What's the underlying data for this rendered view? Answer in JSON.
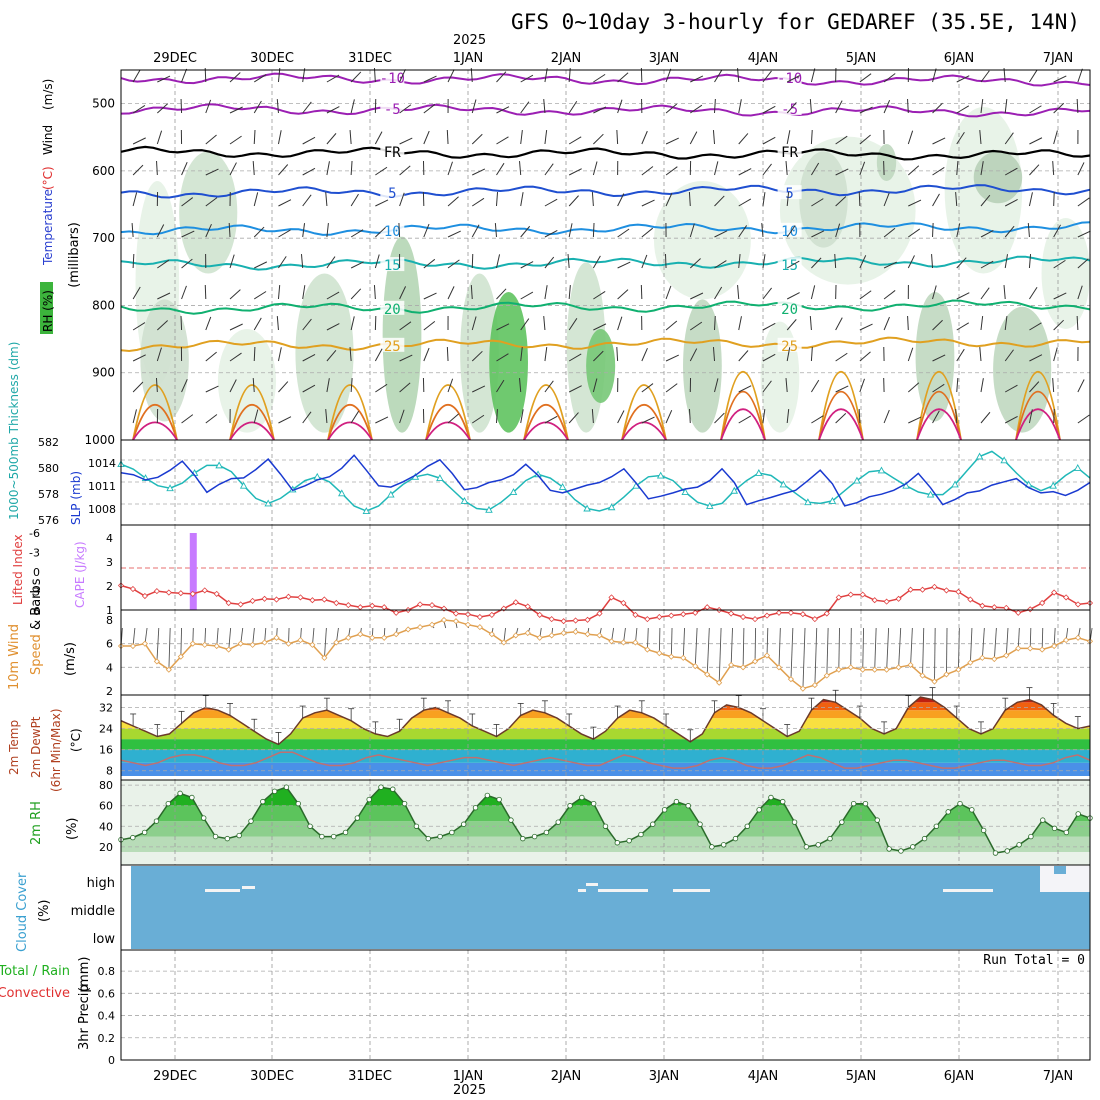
{
  "chart_data": {
    "type": "meteogram",
    "title": "GFS 0~10day 3-hourly for GEDAREF (35.5E, 14N)",
    "year_label": "2025",
    "dates": [
      "29DEC",
      "30DEC",
      "31DEC",
      "1JAN",
      "2JAN",
      "3JAN",
      "4JAN",
      "5JAN",
      "6JAN",
      "7JAN"
    ],
    "run_total": "Run Total = 0",
    "panels": [
      {
        "id": "upper_air",
        "type": "contour",
        "ylabel_parts": [
          {
            "text": "RH (%)",
            "color": "#2aa02a"
          },
          {
            "text": "Temperature",
            "color": "#2a3fd0"
          },
          {
            "text": "(°C)",
            "color": "#e03030"
          },
          {
            "text": "Wind",
            "color": "#000000"
          },
          {
            "text": "(m/s)",
            "color": "#000000"
          }
        ],
        "units": "(millibars)",
        "ylim": [
          1000,
          450
        ],
        "yticks": [
          "500",
          "600",
          "700",
          "800",
          "900",
          "1000"
        ],
        "isotherms": [
          {
            "label": "-10",
            "level_mb": 462,
            "color": "#9b1fb3"
          },
          {
            "label": "-5",
            "level_mb": 508,
            "color": "#9b1fb3"
          },
          {
            "label": "FR",
            "level_mb": 572,
            "color": "#000000"
          },
          {
            "label": "5",
            "level_mb": 633,
            "color": "#1f4fd0"
          },
          {
            "label": "10",
            "level_mb": 689,
            "color": "#1e8fe0"
          },
          {
            "label": "15",
            "level_mb": 740,
            "color": "#18b0b0"
          },
          {
            "label": "20",
            "level_mb": 805,
            "color": "#10b070"
          },
          {
            "label": "25",
            "level_mb": 860,
            "color": "#e0a020"
          }
        ]
      },
      {
        "id": "slp_thickness",
        "type": "line",
        "ylabel_left": "1000~500mb Thickness (dm)",
        "ylabel_right": "SLP (mb)",
        "yticks_left": [
          "582",
          "580",
          "578",
          "576"
        ],
        "yticks_right": [
          "1014",
          "1011",
          "1008"
        ],
        "series": [
          {
            "name": "SLP (mb)",
            "color": "#1a3ad0",
            "values": [
              1012.5,
              1012.2,
              1011.4,
              1011.8,
              1012.9,
              1014.3,
              1012.1,
              1009.5,
              1010.7,
              1011.6,
              1011.7,
              1013.0,
              1014.6,
              1012.3,
              1009.8,
              1010.5,
              1011.4,
              1011.9,
              1013.2,
              1015.2,
              1012.9,
              1010.5,
              1010.3,
              1011.1,
              1012.1,
              1013.5,
              1014.5,
              1012.4,
              1009.9,
              1010.2,
              1011.0,
              1011.4,
              1012.2,
              1013.8,
              1012.1,
              1009.8,
              1009.4,
              1010.0,
              1010.6,
              1011.0,
              1011.9,
              1013.1,
              1010.9,
              1008.5,
              1008.9,
              1009.4,
              1010.0,
              1010.3,
              1011.3,
              1013.1,
              1011.0,
              1007.6,
              1008.2,
              1008.7,
              1009.3,
              1009.8,
              1011.3,
              1012.9,
              1010.8,
              1007.4,
              1007.9,
              1008.8,
              1009.2,
              1009.8,
              1010.8,
              1012.4,
              1010.2,
              1007.6,
              1008.4,
              1009.4,
              1009.7,
              1010.6,
              1011.1,
              1011.6,
              1010.2,
              1009.4,
              1009.6,
              1009.0,
              1009.8,
              1011.0
            ]
          },
          {
            "name": "1000~500mb Thickness (dm)",
            "color": "#20b8b8",
            "values": [
              580.3,
              579.9,
              579.2,
              578.6,
              578.4,
              578.8,
              579.6,
              580.2,
              580.2,
              579.7,
              578.6,
              577.6,
              577.2,
              577.6,
              578.3,
              579.0,
              579.3,
              578.9,
              578.0,
              577.0,
              576.6,
              577.0,
              577.9,
              578.7,
              579.3,
              579.5,
              579.2,
              578.3,
              577.4,
              576.8,
              576.7,
              577.3,
              578.1,
              579.0,
              579.5,
              579.2,
              578.5,
              577.5,
              576.8,
              576.6,
              576.9,
              577.7,
              578.6,
              579.3,
              579.4,
              579.0,
              578.1,
              577.3,
              577.0,
              577.2,
              578.2,
              579.0,
              579.6,
              579.4,
              578.7,
              578.0,
              577.3,
              577.2,
              577.4,
              578.2,
              579.0,
              579.7,
              579.8,
              579.2,
              578.6,
              578.1,
              577.9,
              577.9,
              578.7,
              579.8,
              580.9,
              581.3,
              580.6,
              579.6,
              578.7,
              578.2,
              578.6,
              579.4,
              580.0,
              579.2
            ]
          }
        ]
      },
      {
        "id": "li_cape",
        "type": "line+bar",
        "ylabel_left": "Lifted Index",
        "ylabel_right": "CAPE (J/kg)",
        "yticks_left": [
          "-6",
          "-3",
          "0",
          "3",
          "6"
        ],
        "yticks_right": [
          "4",
          "3",
          "2",
          "1"
        ],
        "series": [
          {
            "name": "Lifted Index",
            "color": "#e04040",
            "values": [
              2.5,
              3.0,
              4.0,
              3.3,
              3.5,
              3.6,
              3.7,
              3.2,
              3.7,
              5.0,
              5.2,
              4.7,
              4.4,
              4.5,
              4.1,
              4.2,
              4.6,
              4.5,
              5.0,
              5.3,
              5.6,
              5.4,
              5.6,
              6.4,
              6.0,
              5.2,
              5.3,
              5.8,
              6.5,
              6.6,
              7.0,
              6.7,
              5.8,
              4.9,
              5.5,
              6.7,
              7.3,
              7.6,
              7.5,
              7.4,
              6.5,
              4.2,
              5.0,
              6.7,
              7.3,
              7.0,
              6.8,
              6.6,
              6.4,
              5.6,
              6.0,
              6.5,
              7.0,
              7.3,
              6.8,
              6.4,
              6.4,
              6.6,
              7.3,
              6.5,
              4.2,
              3.8,
              3.8,
              4.6,
              4.8,
              4.4,
              3.1,
              3.1,
              2.7,
              3.2,
              3.4,
              4.5,
              5.4,
              5.6,
              5.7,
              6.4,
              5.9,
              5.0,
              3.5,
              4.2,
              5.2,
              5.0
            ]
          },
          {
            "name": "CAPE (J/kg)",
            "color": "#c77bff",
            "bars": [
              {
                "index": 6,
                "value": 4.0
              }
            ]
          }
        ]
      },
      {
        "id": "wind10m",
        "type": "line",
        "ylabel": "10m Wind Speed & Barbs",
        "units": "(m/s)",
        "yticks": [
          "8",
          "6",
          "4",
          "2"
        ],
        "series": [
          {
            "name": "10m Wind Speed (m/s)",
            "color": "#e0a050",
            "values": [
              5.8,
              5.8,
              6.0,
              4.5,
              3.8,
              4.9,
              6.0,
              5.9,
              5.8,
              5.5,
              6.0,
              5.9,
              6.1,
              6.5,
              6.0,
              6.3,
              5.9,
              4.8,
              6.1,
              6.5,
              6.8,
              6.5,
              6.5,
              6.8,
              7.2,
              7.4,
              7.6,
              8.0,
              7.9,
              7.6,
              7.4,
              6.8,
              6.1,
              6.7,
              6.9,
              6.5,
              6.7,
              6.9,
              7.0,
              6.8,
              6.7,
              6.2,
              6.1,
              6.1,
              5.5,
              5.2,
              4.9,
              4.8,
              4.1,
              3.4,
              2.7,
              4.2,
              4.0,
              4.5,
              5.0,
              4.0,
              3.0,
              2.2,
              2.5,
              3.3,
              3.8,
              4.0,
              3.8,
              3.8,
              3.8,
              4.0,
              4.2,
              3.3,
              2.8,
              3.4,
              3.8,
              4.4,
              4.8,
              4.7,
              5.0,
              5.6,
              5.6,
              5.5,
              5.8,
              6.3,
              6.5,
              6.2
            ]
          }
        ]
      },
      {
        "id": "temp2m",
        "type": "area+line",
        "ylabel": "2m Temp 2m DewPt (6hr Min/Max)",
        "units": "(°C)",
        "yticks": [
          "32",
          "24",
          "16",
          "8"
        ],
        "series": [
          {
            "name": "2m Temp (°C)",
            "values": [
              27,
              25,
              23,
              21,
              22,
              26,
              30,
              32,
              31,
              29,
              26,
              23,
              20,
              18,
              22,
              28,
              30,
              31,
              29,
              27,
              24,
              22,
              21,
              23,
              28,
              31,
              32,
              30,
              28,
              25,
              23,
              21,
              24,
              29,
              31,
              30,
              28,
              25,
              22,
              20,
              23,
              28,
              31,
              30,
              28,
              25,
              22,
              19,
              22,
              30,
              33,
              32,
              30,
              27,
              24,
              21,
              23,
              31,
              35,
              34,
              31,
              28,
              24,
              22,
              24,
              32,
              36,
              35,
              32,
              28,
              24,
              22,
              24,
              31,
              34,
              35,
              33,
              29,
              26,
              24,
              25
            ]
          },
          {
            "name": "2m DewPt (°C)",
            "values": [
              12,
              11,
              10,
              11,
              13,
              14,
              14,
              13,
              11,
              10,
              10,
              11,
              13,
              15,
              15,
              13,
              11,
              10,
              10,
              11,
              13,
              14,
              13,
              12,
              11,
              10,
              11,
              12,
              13,
              13,
              12,
              11,
              10,
              11,
              12,
              13,
              12,
              11,
              10,
              10,
              12,
              14,
              13,
              11,
              10,
              9,
              9,
              10,
              12,
              13,
              12,
              10,
              9,
              9,
              10,
              12,
              14,
              13,
              11,
              9,
              9,
              10,
              11,
              12,
              12,
              11,
              10,
              9,
              9,
              10,
              11,
              12,
              12,
              11,
              10,
              10,
              11,
              13,
              14,
              12
            ]
          }
        ]
      },
      {
        "id": "rh2m",
        "type": "area",
        "ylabel": "2m RH",
        "units": "(%)",
        "yticks": [
          "80",
          "60",
          "40",
          "20"
        ],
        "series": [
          {
            "name": "2m RH (%)",
            "values": [
              27,
              29,
              34,
              45,
              62,
              72,
              68,
              48,
              30,
              28,
              31,
              45,
              64,
              74,
              78,
              62,
              40,
              30,
              30,
              34,
              48,
              66,
              78,
              76,
              62,
              40,
              28,
              30,
              34,
              42,
              58,
              70,
              66,
              46,
              28,
              30,
              34,
              44,
              60,
              68,
              62,
              40,
              24,
              26,
              32,
              42,
              56,
              64,
              60,
              42,
              20,
              22,
              28,
              40,
              56,
              68,
              64,
              44,
              20,
              22,
              28,
              44,
              62,
              62,
              46,
              18,
              16,
              20,
              28,
              40,
              54,
              62,
              56,
              36,
              14,
              16,
              22,
              30,
              46,
              38,
              34,
              52,
              48
            ]
          }
        ]
      },
      {
        "id": "cloud",
        "type": "step",
        "ylabel": "Cloud Cover",
        "units": "(%)",
        "yticks": [
          "high",
          "middle",
          "low"
        ]
      },
      {
        "id": "precip",
        "type": "bar",
        "ylabel_parts": [
          {
            "text": "Total / Rain",
            "color": "#20b020"
          },
          {
            "text": "Convective",
            "color": "#e03030"
          }
        ],
        "ylabel": "3hr Precip",
        "units": "(mm)",
        "yticks": [
          "0.8",
          "0.6",
          "0.4",
          "0.2",
          "0"
        ],
        "values": []
      }
    ]
  }
}
